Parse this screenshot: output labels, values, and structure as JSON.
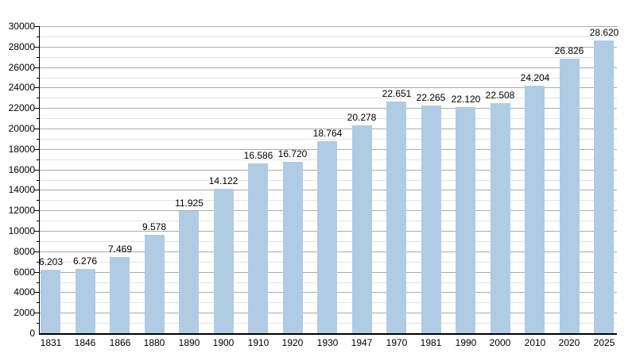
{
  "chart_data": {
    "type": "bar",
    "title": "",
    "xlabel": "",
    "ylabel": "",
    "categories": [
      "1831",
      "1846",
      "1866",
      "1880",
      "1890",
      "1900",
      "1910",
      "1920",
      "1930",
      "1947",
      "1970",
      "1981",
      "1990",
      "2000",
      "2010",
      "2020",
      "2025"
    ],
    "values": [
      6203,
      6276,
      7469,
      9578,
      11925,
      14122,
      16586,
      16720,
      18764,
      20278,
      22651,
      22265,
      22120,
      22508,
      24204,
      26826,
      28620
    ],
    "value_labels": [
      "6.203",
      "6.276",
      "7.469",
      "9.578",
      "11.925",
      "14.122",
      "16.586",
      "16.720",
      "18.764",
      "20.278",
      "22.651",
      "22.265",
      "22.120",
      "22.508",
      "24.204",
      "26.826",
      "28.620"
    ],
    "ylim": [
      0,
      30000
    ],
    "y_major_step": 2000,
    "y_minor_step": 1000,
    "y_tick_labels": [
      "0",
      "2000",
      "4000",
      "6000",
      "8000",
      "10000",
      "12000",
      "14000",
      "16000",
      "18000",
      "20000",
      "22000",
      "24000",
      "26000",
      "28000",
      "30000"
    ],
    "grid": true,
    "legend_position": "none",
    "colors": {
      "bar_fill": "#b0cbe4",
      "grid_major": "#ababab",
      "grid_minor": "#e3e3e3",
      "axis": "#000000",
      "text": "#000000",
      "background": "#ffffff"
    }
  }
}
